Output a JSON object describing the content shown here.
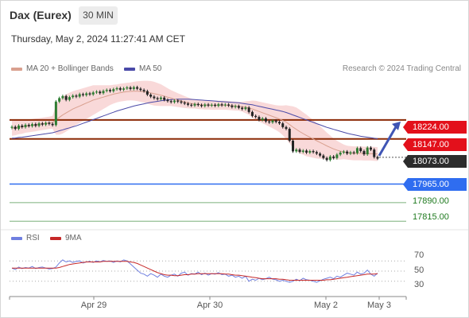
{
  "header": {
    "title": "Dax (Eurex)",
    "timeframe": "30 MIN",
    "datetime": "Thursday, May 2, 2024 11:27:41 AM CET"
  },
  "legend": {
    "ma20": {
      "label": "MA 20 + Bollinger Bands",
      "color": "#d9a08f"
    },
    "ma50": {
      "label": "MA 50",
      "color": "#4a4aa8"
    },
    "credit": "Research © 2024 Trading Central"
  },
  "rsi_legend": {
    "rsi": {
      "label": "RSI",
      "color": "#6f7fe0"
    },
    "ma9": {
      "label": "9MA",
      "color": "#c62828"
    }
  },
  "levels": [
    {
      "value": "18224.00",
      "style": "red"
    },
    {
      "value": "18147.00",
      "style": "red"
    },
    {
      "value": "18073.00",
      "style": "dark"
    },
    {
      "value": "17965.00",
      "style": "blue"
    },
    {
      "value": "17890.00",
      "style": "plain"
    },
    {
      "value": "17815.00",
      "style": "plain"
    }
  ],
  "rsi_ticks": [
    "70",
    "50",
    "30"
  ],
  "date_ticks": [
    "Apr 29",
    "Apr 30",
    "May 2",
    "May 3"
  ],
  "colors": {
    "candle_up": "#2e7d32",
    "candle_down": "#222222",
    "band_fill": "#f6c9c9",
    "resistance": "#8b2a06",
    "support": "#2f6df0",
    "target": "#7bb07b",
    "arrow": "#3f55b5"
  },
  "chart_data": {
    "type": "candlestick",
    "title": "Dax (Eurex)",
    "timeframe": "30 MIN",
    "x_labels": [
      "Apr 29",
      "Apr 30",
      "May 2",
      "May 3"
    ],
    "close_series": [
      18196,
      18188,
      18201,
      18195,
      18204,
      18199,
      18207,
      18200,
      18210,
      18205,
      18212,
      18208,
      18203,
      18298,
      18312,
      18320,
      18305,
      18316,
      18322,
      18318,
      18328,
      18324,
      18331,
      18327,
      18335,
      18338,
      18332,
      18341,
      18345,
      18340,
      18348,
      18352,
      18346,
      18351,
      18355,
      18349,
      18356,
      18350,
      18345,
      18340,
      18326,
      18318,
      18312,
      18308,
      18314,
      18305,
      18300,
      18296,
      18302,
      18298,
      18294,
      18290,
      18285,
      18282,
      18288,
      18284,
      18280,
      18286,
      18282,
      18285,
      18281,
      18287,
      18283,
      18286,
      18282,
      18276,
      18280,
      18273,
      18268,
      18274,
      18256,
      18240,
      18236,
      18224,
      18230,
      18218,
      18214,
      18221,
      18216,
      18210,
      18195,
      18188,
      18140,
      18097,
      18104,
      18095,
      18100,
      18092,
      18098,
      18094,
      18088,
      18080,
      18070,
      18062,
      18076,
      18070,
      18084,
      18092,
      18096,
      18088,
      18093,
      18090,
      18110,
      18098,
      18085,
      18112,
      18104,
      18074,
      18068
    ],
    "ma20_series": [
      18190,
      18192,
      18194,
      18196,
      18198,
      18200,
      18202,
      18204,
      18206,
      18208,
      18210,
      18212,
      18214,
      18224,
      18234,
      18244,
      18252,
      18260,
      18268,
      18274,
      18280,
      18286,
      18292,
      18298,
      18304,
      18308,
      18312,
      18316,
      18320,
      18324,
      18328,
      18331,
      18334,
      18336,
      18338,
      18339,
      18340,
      18340,
      18339,
      18338,
      18336,
      18333,
      18330,
      18327,
      18324,
      18320,
      18316,
      18312,
      18308,
      18304,
      18300,
      18296,
      18293,
      18290,
      18288,
      18286,
      18285,
      18284,
      18284,
      18283,
      18283,
      18283,
      18283,
      18283,
      18282,
      18281,
      18280,
      18279,
      18277,
      18275,
      18272,
      18268,
      18263,
      18258,
      18253,
      18248,
      18243,
      18238,
      18233,
      18228,
      18222,
      18215,
      18205,
      18195,
      18186,
      18177,
      18169,
      18161,
      18154,
      18147,
      18140,
      18133,
      18126,
      18119,
      18113,
      18107,
      18102,
      18098,
      18095,
      18092,
      18090,
      18089,
      18089,
      18089,
      18088,
      18088,
      18088,
      18087,
      18086
    ],
    "ma50_series": [
      18150,
      18151,
      18153,
      18154,
      18156,
      18158,
      18160,
      18162,
      18164,
      18166,
      18168,
      18170,
      18172,
      18176,
      18180,
      18184,
      18188,
      18192,
      18196,
      18200,
      18205,
      18210,
      18215,
      18220,
      18225,
      18230,
      18235,
      18240,
      18245,
      18250,
      18255,
      18260,
      18264,
      18268,
      18272,
      18276,
      18280,
      18283,
      18286,
      18289,
      18292,
      18295,
      18297,
      18299,
      18301,
      18303,
      18305,
      18306,
      18307,
      18308,
      18308,
      18308,
      18308,
      18307,
      18306,
      18305,
      18304,
      18303,
      18302,
      18301,
      18300,
      18299,
      18298,
      18297,
      18296,
      18295,
      18294,
      18293,
      18291,
      18289,
      18287,
      18285,
      18282,
      18279,
      18276,
      18273,
      18270,
      18267,
      18264,
      18261,
      18258,
      18254,
      18249,
      18244,
      18239,
      18234,
      18229,
      18224,
      18219,
      18214,
      18209,
      18204,
      18199,
      18194,
      18190,
      18186,
      18182,
      18178,
      18174,
      18170,
      18167,
      18164,
      18161,
      18158,
      18156,
      18154,
      18152,
      18150,
      18148
    ],
    "band_width": [
      30,
      30,
      28,
      28,
      26,
      26,
      26,
      26,
      25,
      25,
      25,
      25,
      26,
      60,
      70,
      75,
      75,
      74,
      72,
      70,
      68,
      66,
      64,
      62,
      60,
      56,
      52,
      48,
      44,
      40,
      38,
      36,
      36,
      36,
      36,
      36,
      38,
      40,
      42,
      44,
      46,
      48,
      48,
      46,
      44,
      40,
      36,
      32,
      30,
      28,
      26,
      24,
      22,
      20,
      18,
      18,
      18,
      18,
      18,
      18,
      18,
      18,
      18,
      18,
      18,
      18,
      18,
      18,
      20,
      24,
      28,
      34,
      38,
      40,
      42,
      44,
      46,
      48,
      50,
      54,
      60,
      68,
      76,
      84,
      88,
      88,
      86,
      84,
      80,
      76,
      72,
      66,
      60,
      54,
      48,
      42,
      38,
      34,
      30,
      28,
      28,
      28,
      28,
      28,
      28,
      28,
      28,
      28,
      28
    ],
    "y_range": [
      17790,
      18400
    ],
    "levels": {
      "resistance_2": 18224.0,
      "resistance_1": 18147.0,
      "last_price": 18073.0,
      "pivot": 17965.0,
      "support_1": 17890.0,
      "support_2": 17815.0
    },
    "rsi": {
      "range": [
        0,
        100
      ],
      "ticks": [
        70,
        50,
        30
      ],
      "rsi_series": [
        56,
        53,
        58,
        55,
        57,
        56,
        59,
        55,
        57,
        58,
        56,
        54,
        55,
        58,
        66,
        72,
        68,
        70,
        67,
        69,
        70,
        66,
        68,
        69,
        67,
        70,
        68,
        71,
        69,
        70,
        67,
        70,
        68,
        72,
        70,
        64,
        58,
        52,
        46,
        44,
        40,
        45,
        42,
        38,
        44,
        40,
        38,
        42,
        44,
        40,
        46,
        48,
        42,
        45,
        44,
        48,
        43,
        46,
        42,
        45,
        44,
        47,
        43,
        44,
        40,
        42,
        38,
        40,
        36,
        40,
        30,
        34,
        32,
        36,
        33,
        35,
        38,
        34,
        33,
        30,
        32,
        30,
        28,
        30,
        34,
        31,
        36,
        33,
        32,
        30,
        28,
        31,
        34,
        36,
        38,
        35,
        40,
        38,
        42,
        46,
        44,
        42,
        48,
        44,
        46,
        52,
        44,
        40,
        46
      ],
      "ma9_series": [
        56,
        56,
        56,
        56,
        56,
        56,
        56,
        56,
        56,
        56,
        56,
        56,
        56,
        56,
        57,
        59,
        61,
        63,
        64,
        65,
        66,
        67,
        68,
        68,
        68,
        68,
        68,
        69,
        69,
        69,
        69,
        69,
        69,
        69,
        69,
        68,
        67,
        65,
        62,
        59,
        56,
        53,
        50,
        47,
        45,
        43,
        42,
        42,
        41,
        41,
        42,
        43,
        43,
        44,
        44,
        45,
        45,
        45,
        45,
        45,
        45,
        45,
        45,
        44,
        44,
        43,
        42,
        42,
        41,
        40,
        39,
        38,
        37,
        36,
        35,
        35,
        35,
        35,
        35,
        34,
        34,
        33,
        32,
        32,
        32,
        32,
        32,
        32,
        32,
        32,
        32,
        32,
        32,
        33,
        33,
        34,
        35,
        36,
        37,
        38,
        39,
        40,
        41,
        42,
        43,
        44,
        44,
        44,
        45
      ]
    }
  }
}
